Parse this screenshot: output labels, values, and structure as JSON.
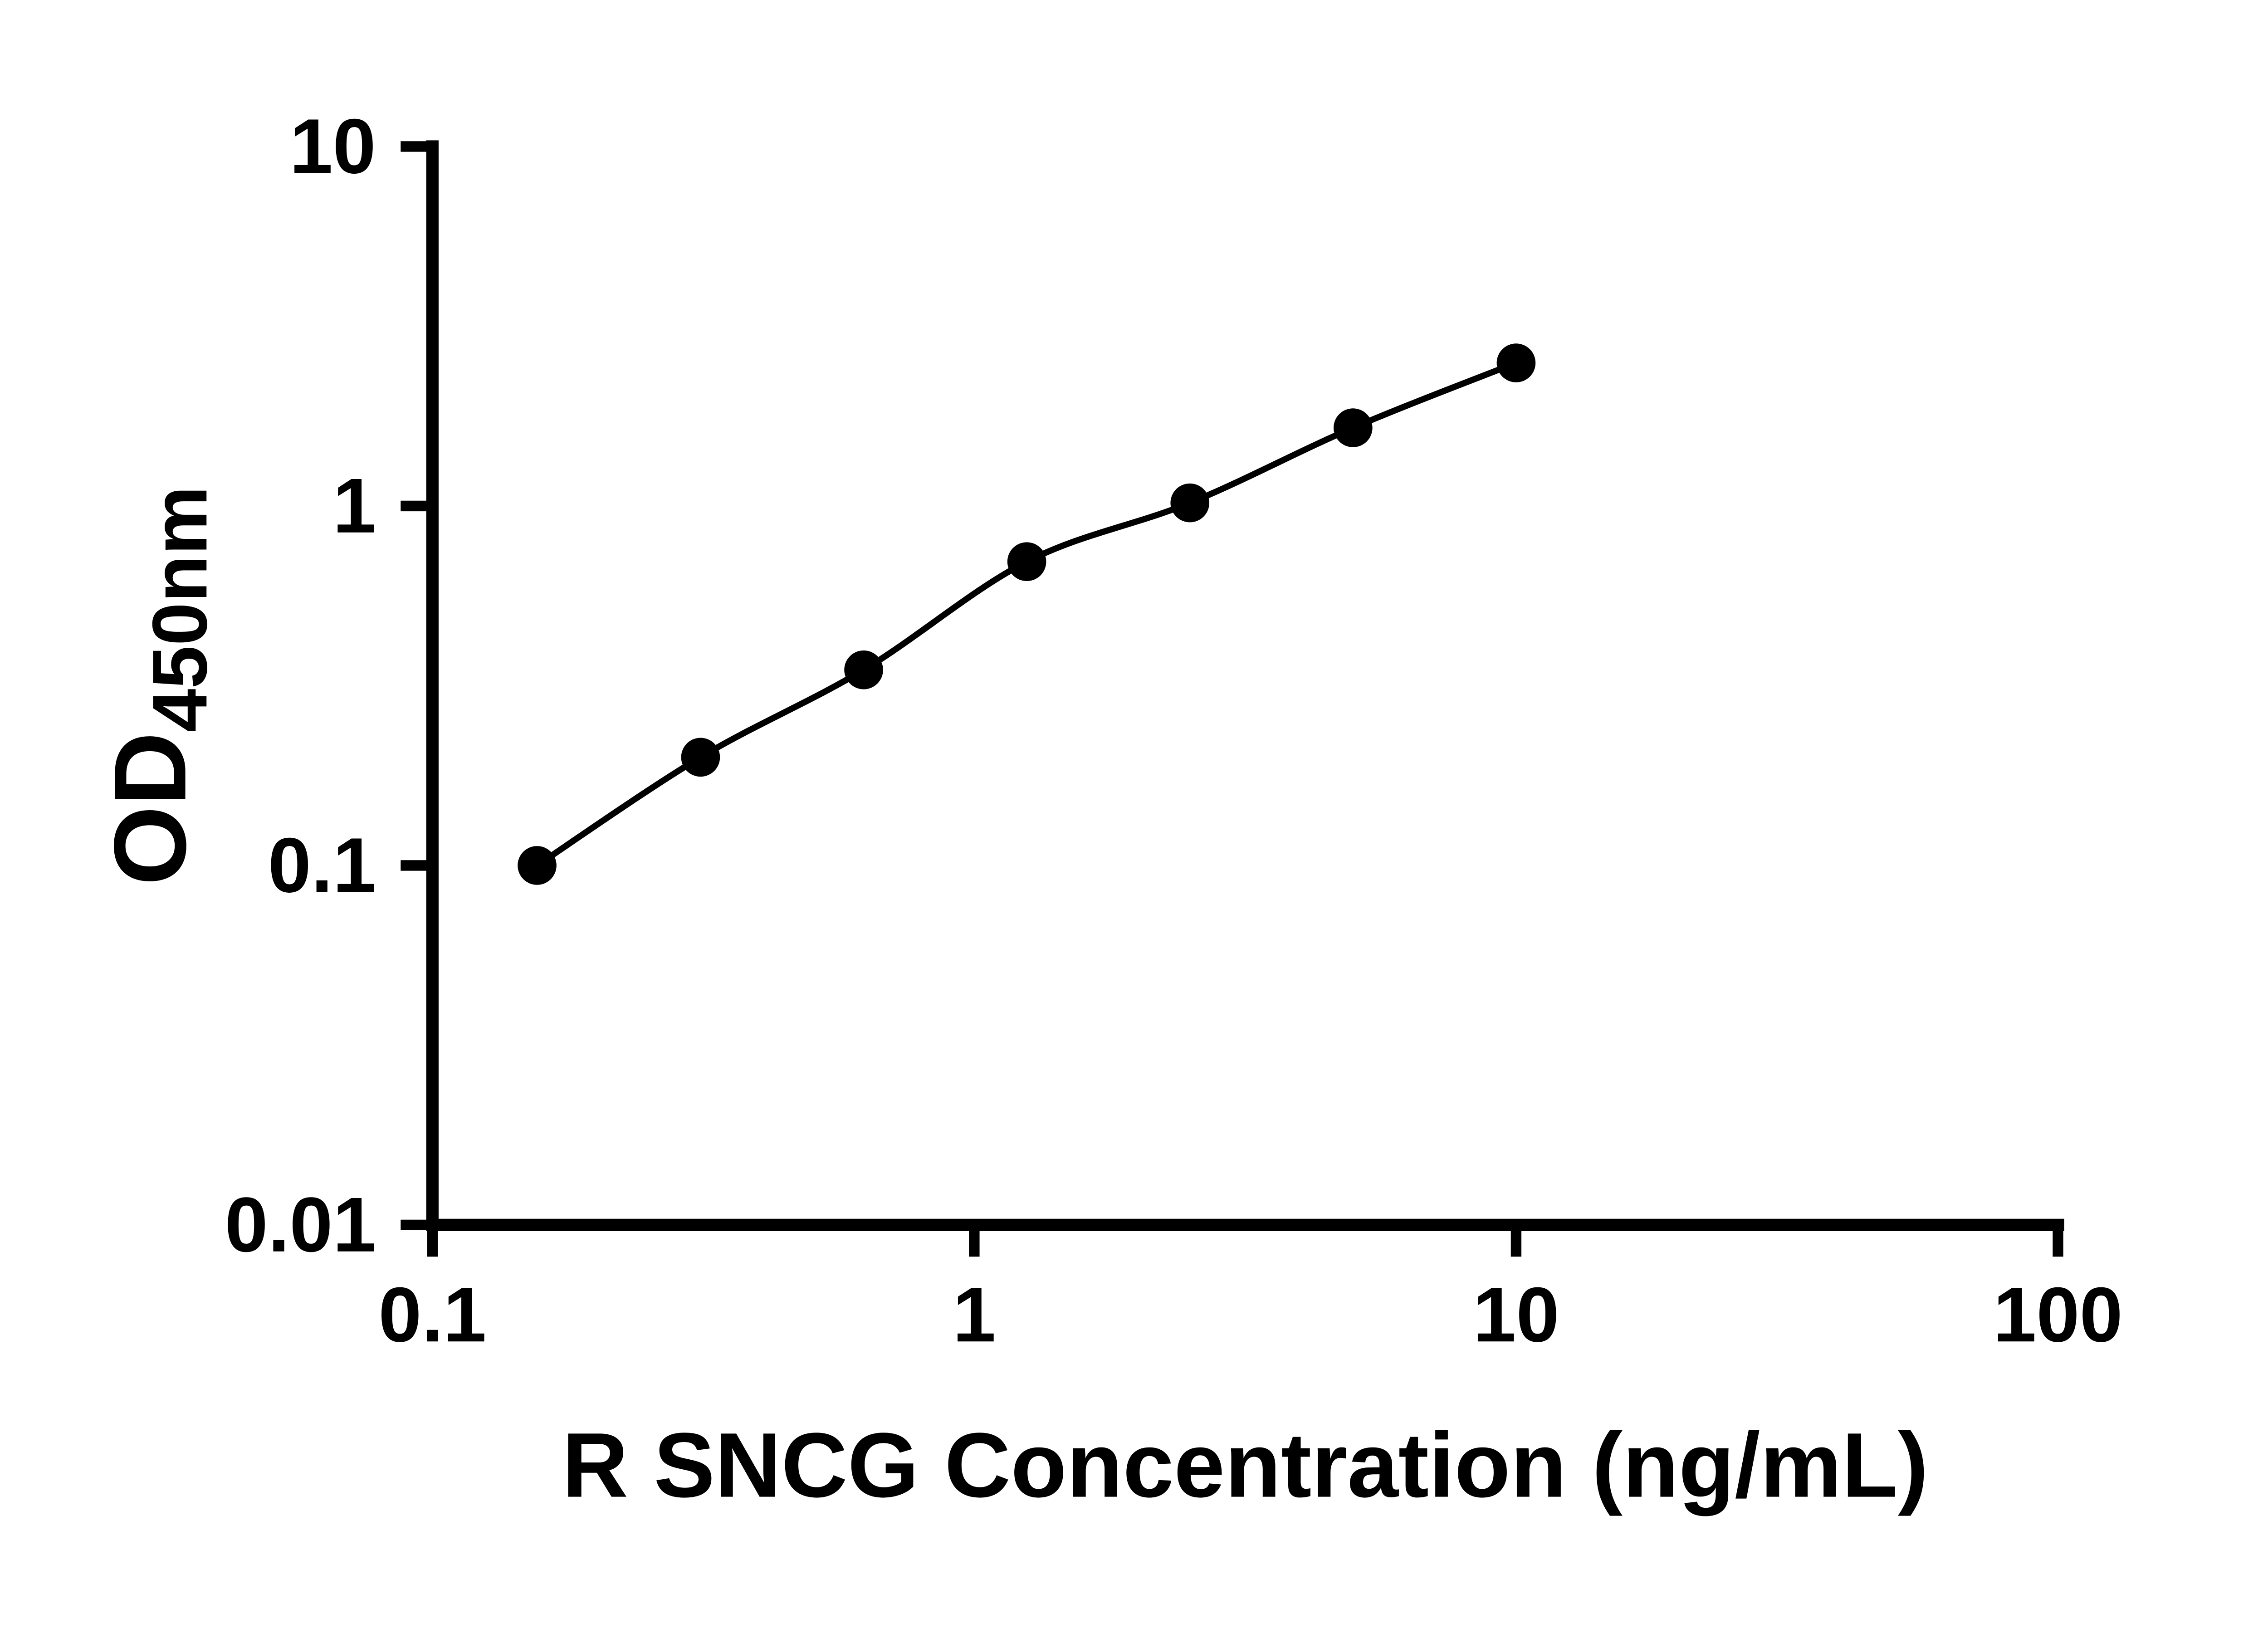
{
  "chart_data": {
    "type": "scatter",
    "title": "",
    "xlabel": "R SNCG Concentration (ng/mL)",
    "ylabel_main": "OD",
    "ylabel_sub": "450nm",
    "x_scale": "log",
    "y_scale": "log",
    "xlim": [
      0.1,
      100
    ],
    "ylim": [
      0.01,
      10
    ],
    "x_ticks": [
      0.1,
      1,
      10,
      100
    ],
    "x_tick_labels": [
      "0.1",
      "1",
      "10",
      "100"
    ],
    "y_ticks": [
      0.01,
      0.1,
      1,
      10
    ],
    "y_tick_labels": [
      "0.01",
      "0.1",
      "1",
      "10"
    ],
    "grid": false,
    "legend": "none",
    "curve": "smooth",
    "series": [
      {
        "marker": "circle",
        "color": "#000000",
        "x": [
          0.156,
          0.3125,
          0.625,
          1.25,
          2.5,
          5,
          10
        ],
        "y": [
          0.1,
          0.2,
          0.35,
          0.7,
          1.02,
          1.65,
          2.5
        ]
      }
    ]
  },
  "colors": {
    "axis": "#000000",
    "marker": "#000000",
    "line": "#000000",
    "background": "#ffffff"
  }
}
